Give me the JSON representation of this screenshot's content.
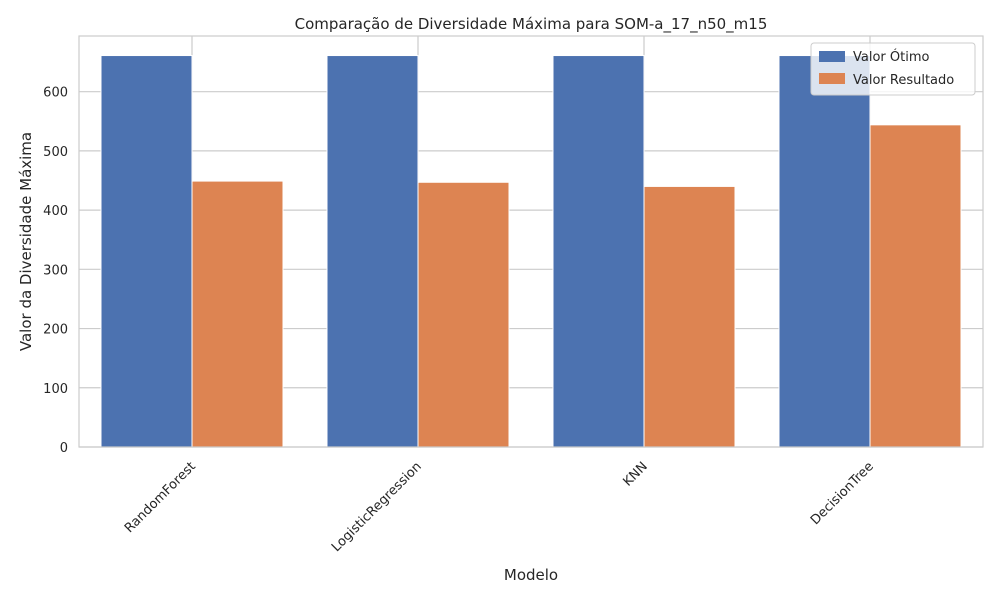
{
  "chart_data": {
    "type": "bar",
    "title": "Comparação de Diversidade Máxima para SOM-a_17_n50_m15",
    "xlabel": "Modelo",
    "ylabel": "Valor da Diversidade Máxima",
    "categories": [
      "RandomForest",
      "LogisticRegression",
      "KNN",
      "DecisionTree"
    ],
    "series": [
      {
        "name": "Valor Ótimo",
        "color": "#4c72b0",
        "values": [
          661,
          661,
          661,
          661
        ]
      },
      {
        "name": "Valor Resultado",
        "color": "#dd8452",
        "values": [
          449,
          447,
          440,
          544
        ]
      }
    ],
    "ylim": [
      0,
      694
    ],
    "yticks": [
      0,
      100,
      200,
      300,
      400,
      500,
      600
    ],
    "grid": true,
    "legend_position": "top-right"
  }
}
